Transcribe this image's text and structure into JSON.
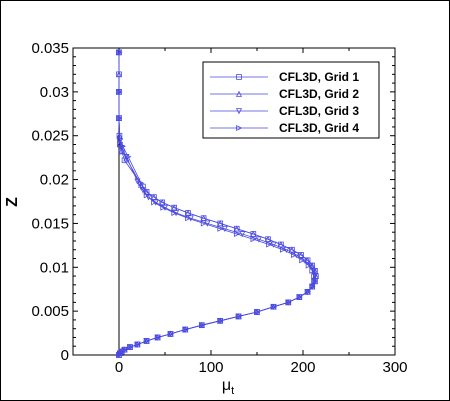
{
  "chart_data": {
    "type": "line",
    "xlabel": "μ",
    "xlabel_subscript": "t",
    "ylabel": "Z",
    "xlim": [
      -50,
      300
    ],
    "ylim": [
      0,
      0.035
    ],
    "xticks": [
      0,
      100,
      200,
      300
    ],
    "xtick_labels": [
      "0",
      "100",
      "200",
      "300"
    ],
    "yticks": [
      0,
      0.005,
      0.01,
      0.015,
      0.02,
      0.025,
      0.03,
      0.035
    ],
    "ytick_labels": [
      "0",
      "0.005",
      "0.01",
      "0.015",
      "0.02",
      "0.025",
      "0.03",
      "0.035"
    ],
    "grid": false,
    "legend_position": "top-right",
    "line_color": "#4a4ae0",
    "series": [
      {
        "name": "CFL3D, Grid 1",
        "marker": "square",
        "x": [
          0,
          1,
          3,
          6,
          12,
          20,
          30,
          42,
          56,
          72,
          90,
          110,
          130,
          150,
          168,
          184,
          196,
          205,
          210,
          213,
          214,
          213,
          210,
          205,
          198,
          188,
          176,
          162,
          146,
          128,
          110,
          92,
          75,
          60,
          47,
          38,
          30,
          26,
          6,
          3,
          1,
          0.5,
          0,
          0,
          0,
          0
        ],
        "y": [
          0,
          0.0002,
          0.0004,
          0.0006,
          0.0009,
          0.0012,
          0.0016,
          0.002,
          0.0024,
          0.0029,
          0.0034,
          0.0039,
          0.0044,
          0.0049,
          0.0055,
          0.006,
          0.0066,
          0.0072,
          0.0078,
          0.0084,
          0.009,
          0.0096,
          0.0102,
          0.0108,
          0.0114,
          0.012,
          0.0126,
          0.0132,
          0.0138,
          0.0144,
          0.015,
          0.0156,
          0.0162,
          0.0168,
          0.0174,
          0.018,
          0.0186,
          0.0192,
          0.0222,
          0.0232,
          0.024,
          0.025,
          0.027,
          0.03,
          0.032,
          0.0345
        ]
      },
      {
        "name": "CFL3D, Grid 2",
        "marker": "triangle-up",
        "x": [
          0,
          1,
          3,
          6,
          12,
          20,
          30,
          42,
          56,
          72,
          90,
          110,
          130,
          150,
          168,
          184,
          196,
          205,
          210,
          213,
          214,
          213,
          210,
          205,
          198,
          188,
          176,
          162,
          146,
          128,
          110,
          92,
          75,
          60,
          47,
          38,
          30,
          24,
          8,
          3,
          1,
          0.5,
          0,
          0,
          0,
          0
        ],
        "y": [
          0,
          0.0002,
          0.0004,
          0.0006,
          0.0009,
          0.0012,
          0.0016,
          0.002,
          0.0024,
          0.0029,
          0.0034,
          0.0039,
          0.0044,
          0.0049,
          0.0055,
          0.006,
          0.0066,
          0.0072,
          0.0078,
          0.0084,
          0.009,
          0.0096,
          0.0102,
          0.0108,
          0.0114,
          0.012,
          0.0126,
          0.0132,
          0.0138,
          0.0144,
          0.015,
          0.0156,
          0.0162,
          0.0168,
          0.0174,
          0.018,
          0.0186,
          0.0194,
          0.0224,
          0.0233,
          0.0241,
          0.025,
          0.027,
          0.03,
          0.032,
          0.0345
        ]
      },
      {
        "name": "CFL3D, Grid 3",
        "marker": "triangle-down",
        "x": [
          0,
          1,
          3,
          6,
          12,
          20,
          30,
          42,
          56,
          72,
          90,
          110,
          130,
          150,
          168,
          184,
          196,
          205,
          210,
          213,
          213,
          212,
          208,
          202,
          193,
          182,
          168,
          152,
          134,
          115,
          96,
          78,
          62,
          50,
          40,
          32,
          26,
          20,
          8,
          3,
          1,
          0,
          0,
          0
        ],
        "y": [
          0,
          0.0002,
          0.0004,
          0.0006,
          0.0009,
          0.0012,
          0.0016,
          0.002,
          0.0024,
          0.0029,
          0.0034,
          0.0039,
          0.0044,
          0.0049,
          0.0055,
          0.006,
          0.0066,
          0.0072,
          0.0078,
          0.0084,
          0.009,
          0.0096,
          0.0102,
          0.0108,
          0.0114,
          0.012,
          0.0126,
          0.0132,
          0.0138,
          0.0144,
          0.015,
          0.0156,
          0.0162,
          0.0168,
          0.0174,
          0.018,
          0.0188,
          0.0198,
          0.0226,
          0.0236,
          0.0244,
          0.027,
          0.03,
          0.0345
        ]
      },
      {
        "name": "CFL3D, Grid 4",
        "marker": "triangle-right",
        "x": [
          0,
          1,
          3,
          6,
          12,
          20,
          30,
          42,
          56,
          72,
          90,
          110,
          130,
          150,
          168,
          184,
          196,
          205,
          210,
          212,
          212,
          210,
          206,
          199,
          190,
          178,
          163,
          146,
          128,
          110,
          92,
          75,
          60,
          48,
          38,
          30,
          24,
          10,
          4,
          1,
          0,
          0,
          0
        ],
        "y": [
          0,
          0.0002,
          0.0004,
          0.0006,
          0.0009,
          0.0012,
          0.0016,
          0.002,
          0.0024,
          0.0029,
          0.0034,
          0.0039,
          0.0044,
          0.0049,
          0.0055,
          0.006,
          0.0066,
          0.0072,
          0.0078,
          0.0084,
          0.009,
          0.0096,
          0.0102,
          0.0108,
          0.0114,
          0.012,
          0.0126,
          0.0132,
          0.0138,
          0.0144,
          0.015,
          0.0156,
          0.0162,
          0.0168,
          0.0174,
          0.0182,
          0.0196,
          0.0226,
          0.0238,
          0.0246,
          0.027,
          0.03,
          0.0345
        ]
      }
    ]
  }
}
